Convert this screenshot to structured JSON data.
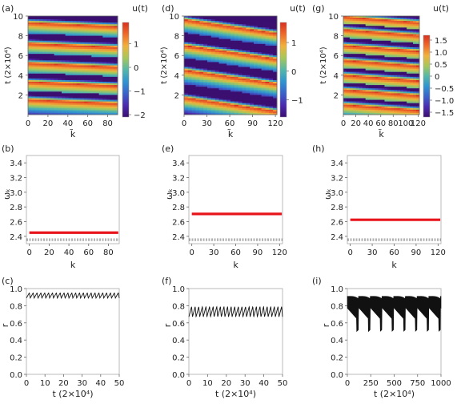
{
  "chart_data": [
    {
      "panel": "(a)",
      "type": "heatmap",
      "xlabel": "k̃",
      "ylabel": "t (2×10⁴)",
      "colorbar_label": "u(t)",
      "xlim": [
        0,
        90
      ],
      "ylim": [
        0,
        10
      ],
      "xticks": [
        "0",
        "20",
        "40",
        "60",
        "80"
      ],
      "yticks": [
        "2",
        "4",
        "6",
        "8",
        "10"
      ],
      "colorbar_range": [
        -2.1,
        1.9
      ],
      "colorbar_ticks": [
        "1",
        "0",
        "−1",
        "−2"
      ],
      "stripe_centers_t": [
        1.5,
        3.3,
        5.2,
        7.2,
        9.3
      ],
      "stripe_drift_over_k": -0.4
    },
    {
      "panel": "(d)",
      "type": "heatmap",
      "xlabel": "k̃",
      "ylabel": "t (2×10⁴)",
      "colorbar_label": "u(t)",
      "xlim": [
        0,
        122
      ],
      "ylim": [
        0,
        10
      ],
      "xticks": [
        "0",
        "30",
        "60",
        "90",
        "120"
      ],
      "yticks": [
        "2",
        "4",
        "6",
        "8",
        "10"
      ],
      "colorbar_range": [
        -1.6,
        1.7
      ],
      "colorbar_ticks": [
        "1",
        "0",
        "−1"
      ],
      "stripe_centers_t": [
        1.7,
        4.5,
        7.0,
        9.6
      ],
      "stripe_drift_over_k": -1.4
    },
    {
      "panel": "(g)",
      "type": "heatmap",
      "xlabel": "k̃",
      "ylabel": "t (2×10⁴)",
      "colorbar_label": "u(t)",
      "xlim": [
        0,
        122
      ],
      "ylim": [
        0,
        10
      ],
      "xticks": [
        "0",
        "20",
        "40",
        "60",
        "80",
        "100",
        "120"
      ],
      "yticks": [
        "2",
        "4",
        "6",
        "8",
        "10"
      ],
      "colorbar_range": [
        -1.7,
        1.7
      ],
      "colorbar_ticks": [
        "1.5",
        "1.0",
        "0.5",
        "0",
        "−0.5",
        "−1.0",
        "−1.5"
      ],
      "stripe_centers_t": [
        1.0,
        2.5,
        4.0,
        5.5,
        7.0,
        8.6,
        9.9
      ],
      "stripe_drift_over_k": -0.6
    },
    {
      "panel": "(b)",
      "type": "line",
      "xlabel": "k",
      "ylabel": "ωₖ",
      "xlim": [
        -3,
        91
      ],
      "ylim": [
        2.3,
        3.5
      ],
      "xticks": [
        0,
        20,
        40,
        60,
        80
      ],
      "yticks": [
        2.4,
        2.6,
        2.8,
        3.0,
        3.2,
        3.4
      ],
      "series": [
        {
          "kind": "thick",
          "values": [
            2.45
          ]
        },
        {
          "kind": "dashed",
          "values": [
            2.345,
            2.365
          ]
        }
      ]
    },
    {
      "panel": "(e)",
      "type": "line",
      "xlabel": "k",
      "ylabel": "ωₖ",
      "xlim": [
        -4,
        124
      ],
      "ylim": [
        2.3,
        3.5
      ],
      "xticks": [
        0,
        30,
        60,
        90,
        120
      ],
      "yticks": [
        2.4,
        2.6,
        2.8,
        3.0,
        3.2,
        3.4
      ],
      "series": [
        {
          "kind": "thick",
          "values": [
            2.705
          ]
        },
        {
          "kind": "dashed",
          "values": [
            2.345,
            2.365
          ]
        }
      ]
    },
    {
      "panel": "(h)",
      "type": "line",
      "xlabel": "k",
      "ylabel": "ωₖ",
      "xlim": [
        -4,
        124
      ],
      "ylim": [
        2.3,
        3.5
      ],
      "xticks": [
        0,
        30,
        60,
        90,
        120
      ],
      "yticks": [
        2.4,
        2.6,
        2.8,
        3.0,
        3.2,
        3.4
      ],
      "series": [
        {
          "kind": "thick",
          "values": [
            2.625
          ]
        },
        {
          "kind": "dashed",
          "values": [
            2.345,
            2.365
          ]
        }
      ]
    },
    {
      "panel": "(c)",
      "type": "line",
      "xlabel": "t (2×10⁴)",
      "ylabel": "r",
      "xlim": [
        0,
        50
      ],
      "ylim": [
        0,
        1.0
      ],
      "xticks": [
        0,
        10,
        20,
        30,
        40,
        50
      ],
      "yticks": [
        "0.0",
        "0.2",
        "0.4",
        "0.6",
        "0.8",
        "1.0"
      ],
      "series": [
        {
          "kind": "oscillation",
          "mean": 0.92,
          "amplitude": 0.03,
          "cycles": 24
        }
      ]
    },
    {
      "panel": "(f)",
      "type": "line",
      "xlabel": "t (2×10⁴)",
      "ylabel": "r",
      "xlim": [
        0,
        50
      ],
      "ylim": [
        0,
        1.0
      ],
      "xticks": [
        0,
        10,
        20,
        30,
        40,
        50
      ],
      "yticks": [
        "0.0",
        "0.2",
        "0.4",
        "0.6",
        "0.8",
        "1.0"
      ],
      "series": [
        {
          "kind": "oscillation",
          "mean": 0.73,
          "amplitude": 0.06,
          "cycles": 26
        }
      ]
    },
    {
      "panel": "(i)",
      "type": "line",
      "xlabel": "t (2×10⁴)",
      "ylabel": "r",
      "xlim": [
        0,
        1000
      ],
      "ylim": [
        0,
        1.0
      ],
      "xticks": [
        0,
        250,
        500,
        750,
        1000
      ],
      "yticks": [
        "0.0",
        "0.2",
        "0.4",
        "0.6",
        "0.8",
        "1.0"
      ],
      "series": [
        {
          "kind": "band",
          "upper": 0.91,
          "lower_min": 0.5,
          "lower_max": 0.78,
          "cycles": 8
        }
      ]
    }
  ],
  "colors": {
    "thick_line": "#e8141b",
    "dashed_line": "#444444",
    "r_line": "#111111",
    "axis": "#666666",
    "colormap": [
      "#3b0f70",
      "#4b2bb0",
      "#3b62c9",
      "#2f94d0",
      "#55b7a8",
      "#a6c75a",
      "#f0b23c",
      "#ee6a2a",
      "#d7301f"
    ]
  }
}
